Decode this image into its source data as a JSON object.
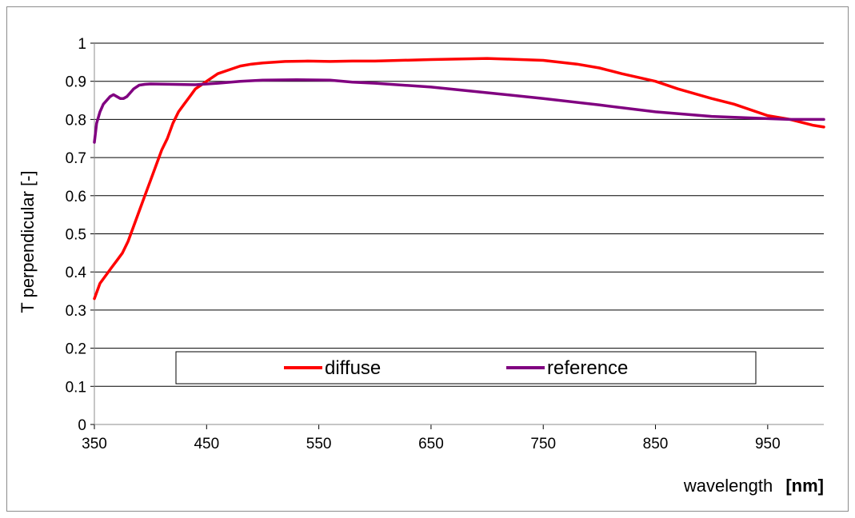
{
  "chart_data": {
    "type": "line",
    "title": "",
    "xlabel": "wavelength",
    "xlabel_unit": "[nm]",
    "ylabel": "T perpendicular [-]",
    "xlim": [
      350,
      1000
    ],
    "ylim": [
      0,
      1
    ],
    "x_ticks": [
      "350",
      "450",
      "550",
      "650",
      "750",
      "850",
      "950"
    ],
    "y_ticks": [
      "0",
      "0.1",
      "0.2",
      "0.3",
      "0.4",
      "0.5",
      "0.6",
      "0.7",
      "0.8",
      "0.9",
      "1"
    ],
    "grid": "horizontal",
    "legend_position": "inside-bottom",
    "series": [
      {
        "name": "diffuse",
        "color": "#ff0000",
        "x": [
          350,
          355,
          360,
          365,
          370,
          375,
          380,
          385,
          390,
          395,
          400,
          405,
          410,
          415,
          420,
          425,
          430,
          435,
          440,
          445,
          450,
          455,
          460,
          470,
          480,
          490,
          500,
          520,
          540,
          560,
          580,
          600,
          650,
          700,
          720,
          750,
          780,
          800,
          820,
          850,
          870,
          900,
          920,
          950,
          970,
          990,
          1000
        ],
        "y": [
          0.33,
          0.37,
          0.39,
          0.41,
          0.43,
          0.45,
          0.48,
          0.52,
          0.56,
          0.6,
          0.64,
          0.68,
          0.72,
          0.75,
          0.79,
          0.82,
          0.84,
          0.86,
          0.88,
          0.89,
          0.9,
          0.91,
          0.92,
          0.93,
          0.94,
          0.945,
          0.948,
          0.952,
          0.953,
          0.952,
          0.953,
          0.953,
          0.957,
          0.96,
          0.958,
          0.955,
          0.945,
          0.935,
          0.92,
          0.9,
          0.88,
          0.855,
          0.84,
          0.81,
          0.8,
          0.785,
          0.78
        ]
      },
      {
        "name": "reference",
        "color": "#800080",
        "x": [
          350,
          352,
          355,
          358,
          361,
          364,
          367,
          370,
          373,
          376,
          379,
          382,
          385,
          390,
          395,
          400,
          420,
          440,
          460,
          480,
          500,
          530,
          560,
          580,
          600,
          650,
          700,
          750,
          800,
          850,
          900,
          950,
          970,
          1000
        ],
        "y": [
          0.74,
          0.79,
          0.82,
          0.84,
          0.85,
          0.86,
          0.865,
          0.86,
          0.855,
          0.855,
          0.86,
          0.87,
          0.88,
          0.89,
          0.892,
          0.893,
          0.892,
          0.891,
          0.895,
          0.9,
          0.903,
          0.904,
          0.903,
          0.898,
          0.895,
          0.885,
          0.87,
          0.855,
          0.838,
          0.82,
          0.808,
          0.802,
          0.8,
          0.8
        ]
      }
    ]
  }
}
